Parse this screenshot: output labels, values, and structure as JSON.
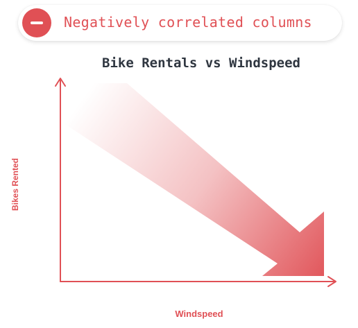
{
  "badge": {
    "label": "Negatively correlated columns",
    "icon": "minus-circle-icon",
    "color": "#e05055"
  },
  "diagram": {
    "title": "Bike Rentals vs Windspeed",
    "x_label": "Windspeed",
    "y_label": "Bikes Rented",
    "trend": "negative",
    "accent_color": "#e05055"
  }
}
